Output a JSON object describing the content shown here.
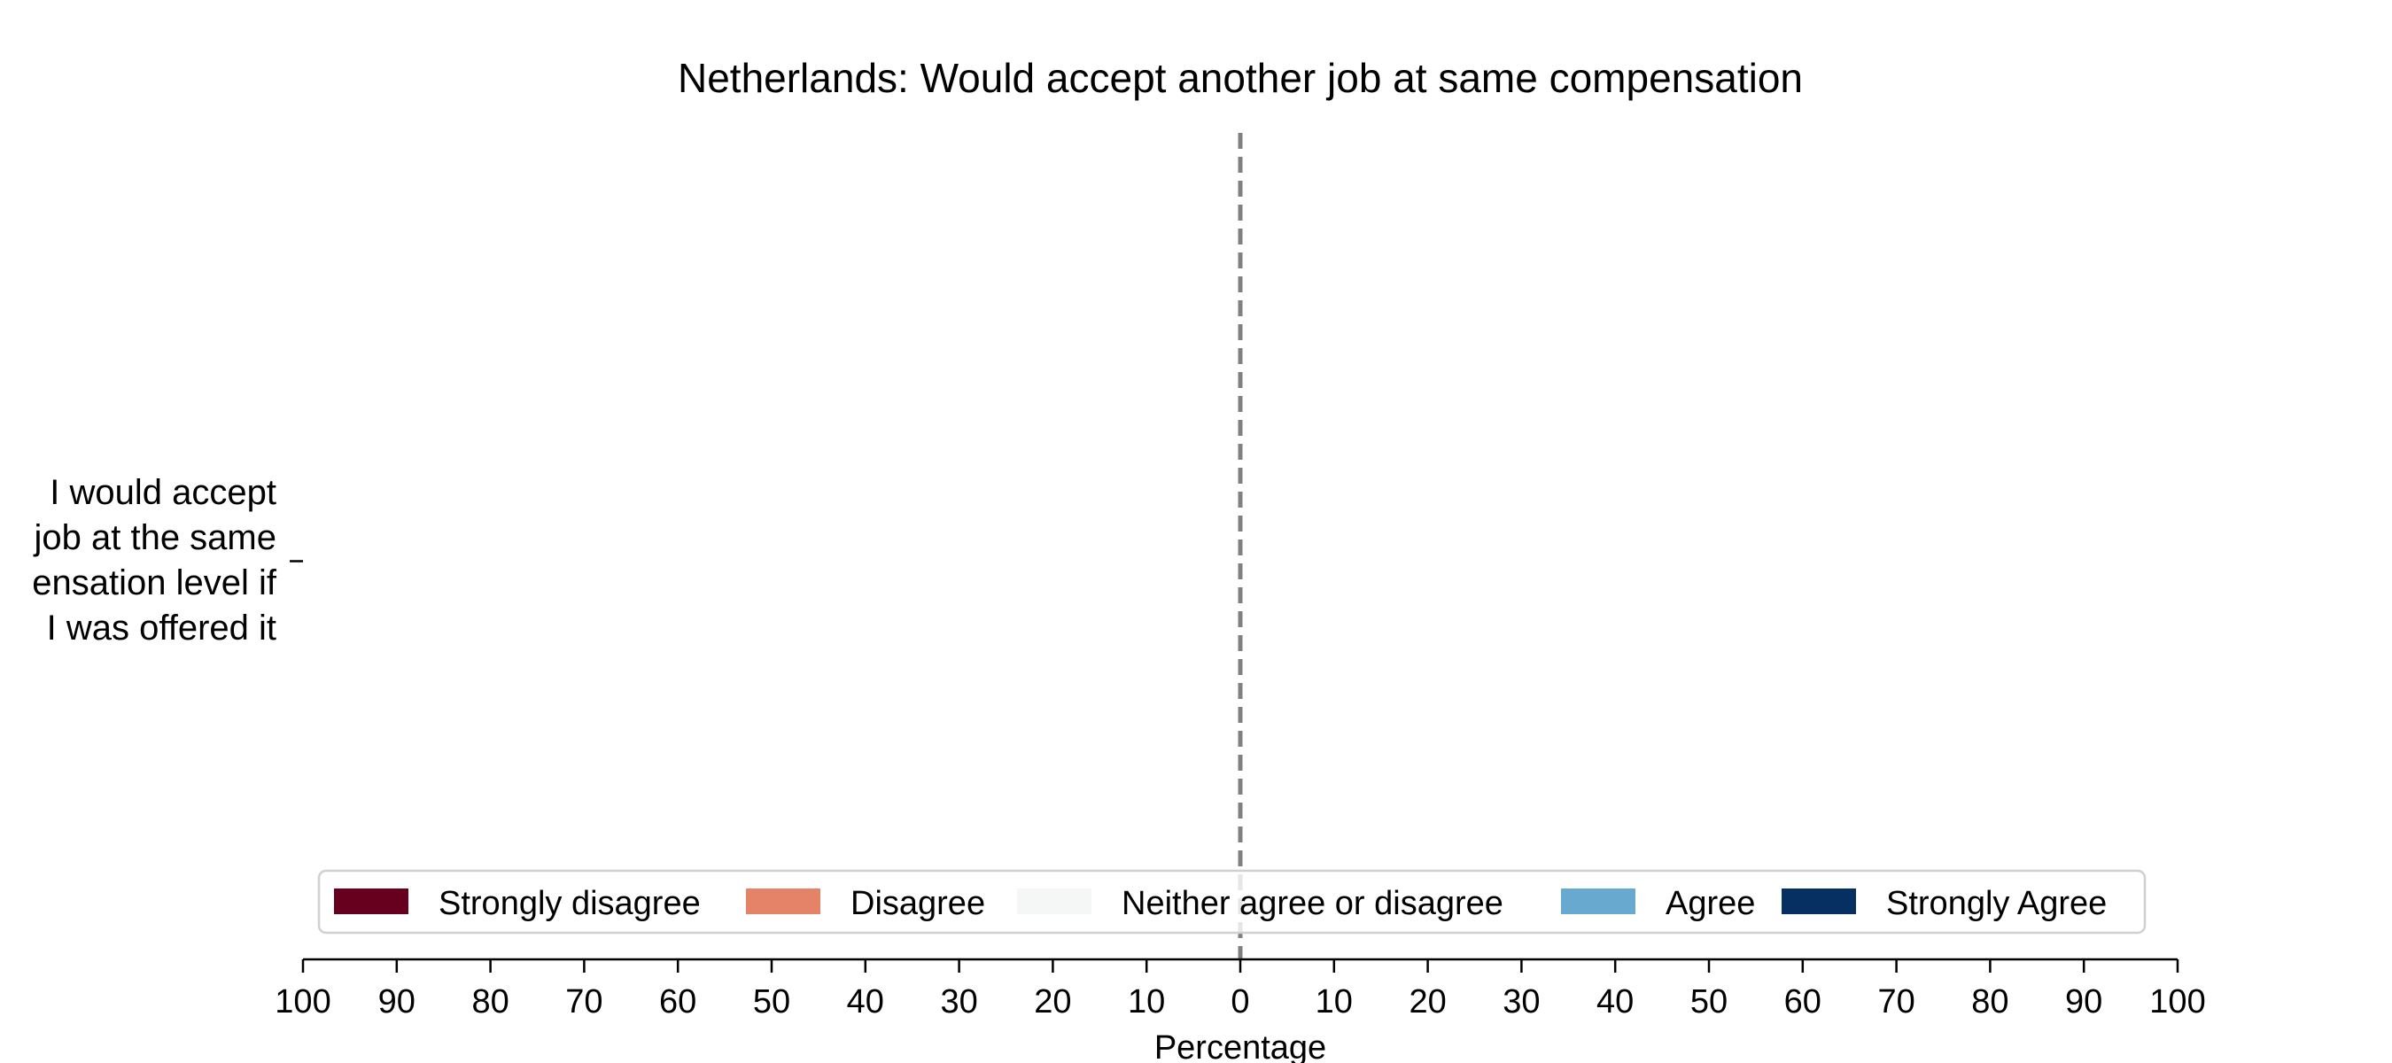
{
  "chart_data": {
    "type": "bar",
    "orientation": "horizontal",
    "stacked": "diverging",
    "title": "Netherlands: Would accept another job at same compensation",
    "xlabel": "Percentage",
    "ylabel": "",
    "xlim": [
      -100,
      100
    ],
    "x_ticks": [
      -100,
      -90,
      -80,
      -70,
      -60,
      -50,
      -40,
      -30,
      -20,
      -10,
      0,
      10,
      20,
      30,
      40,
      50,
      60,
      70,
      80,
      90,
      100
    ],
    "x_tick_labels": [
      "100",
      "90",
      "80",
      "70",
      "60",
      "50",
      "40",
      "30",
      "20",
      "10",
      "0",
      "10",
      "20",
      "30",
      "40",
      "50",
      "60",
      "70",
      "80",
      "90",
      "100"
    ],
    "categories": [
      [
        "I would accept",
        "job at the same",
        "ensation level if",
        "I was offered it"
      ]
    ],
    "series": [
      {
        "name": "Strongly disagree",
        "color": "#67001f",
        "values": [
          null
        ]
      },
      {
        "name": "Disagree",
        "color": "#e58368",
        "values": [
          null
        ]
      },
      {
        "name": "Neither agree or disagree",
        "color": "#f5f6f6",
        "values": [
          null
        ]
      },
      {
        "name": "Agree",
        "color": "#67a9cf",
        "values": [
          null
        ]
      },
      {
        "name": "Strongly Agree",
        "color": "#053061",
        "values": [
          null
        ]
      }
    ],
    "center_line": {
      "x": 0,
      "style": "dashed",
      "color": "#808080"
    },
    "legend": {
      "placement": "lower-center",
      "orientation": "horizontal"
    },
    "grid": false
  }
}
